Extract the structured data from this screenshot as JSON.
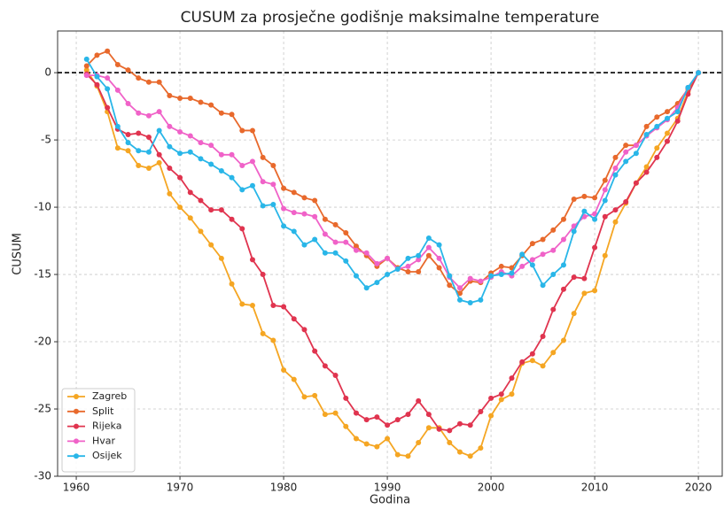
{
  "chart_data": {
    "type": "line",
    "title": "CUSUM za prosječne godišnje maksimalne temperature",
    "xlabel": "Godina",
    "ylabel": "CUSUM",
    "x": [
      1961,
      1962,
      1963,
      1964,
      1965,
      1966,
      1967,
      1968,
      1969,
      1970,
      1971,
      1972,
      1973,
      1974,
      1975,
      1976,
      1977,
      1978,
      1979,
      1980,
      1981,
      1982,
      1983,
      1984,
      1985,
      1986,
      1987,
      1988,
      1989,
      1990,
      1991,
      1992,
      1993,
      1994,
      1995,
      1996,
      1997,
      1998,
      1999,
      2000,
      2001,
      2002,
      2003,
      2004,
      2005,
      2006,
      2007,
      2008,
      2009,
      2010,
      2011,
      2012,
      2013,
      2014,
      2015,
      2016,
      2017,
      2018,
      2019,
      2020
    ],
    "series": [
      {
        "name": "Zagreb",
        "color": "#f5a623",
        "values": [
          0.2,
          -1.0,
          -2.9,
          -5.6,
          -5.8,
          -6.9,
          -7.1,
          -6.7,
          -9.0,
          -10.0,
          -10.8,
          -11.8,
          -12.8,
          -13.8,
          -15.7,
          -17.2,
          -17.3,
          -19.4,
          -19.9,
          -22.1,
          -22.8,
          -24.1,
          -24.0,
          -25.4,
          -25.3,
          -26.3,
          -27.2,
          -27.6,
          -27.8,
          -27.2,
          -28.4,
          -28.5,
          -27.5,
          -26.4,
          -26.4,
          -27.5,
          -28.2,
          -28.5,
          -27.9,
          -25.5,
          -24.3,
          -23.9,
          -21.6,
          -21.4,
          -21.8,
          -20.8,
          -19.9,
          -17.9,
          -16.4,
          -16.2,
          -13.6,
          -11.1,
          -9.7,
          -8.2,
          -7.0,
          -5.6,
          -4.5,
          -3.4,
          -1.4,
          0
        ]
      },
      {
        "name": "Split",
        "color": "#e8692c",
        "values": [
          0.5,
          1.3,
          1.6,
          0.6,
          0.2,
          -0.4,
          -0.7,
          -0.7,
          -1.7,
          -1.9,
          -1.9,
          -2.2,
          -2.4,
          -3.0,
          -3.1,
          -4.3,
          -4.3,
          -6.3,
          -6.9,
          -8.6,
          -8.9,
          -9.3,
          -9.5,
          -10.9,
          -11.3,
          -11.9,
          -12.9,
          -13.6,
          -14.4,
          -13.8,
          -14.5,
          -14.8,
          -14.8,
          -13.6,
          -14.5,
          -15.8,
          -16.4,
          -15.5,
          -15.6,
          -14.9,
          -14.4,
          -14.5,
          -13.6,
          -12.7,
          -12.4,
          -11.7,
          -10.9,
          -9.4,
          -9.2,
          -9.3,
          -8.0,
          -6.3,
          -5.4,
          -5.4,
          -4.0,
          -3.3,
          -2.9,
          -2.3,
          -1.2,
          0
        ]
      },
      {
        "name": "Rijeka",
        "color": "#e0344f",
        "values": [
          -0.1,
          -0.9,
          -2.6,
          -4.2,
          -4.6,
          -4.5,
          -4.8,
          -6.1,
          -7.1,
          -7.8,
          -8.9,
          -9.5,
          -10.2,
          -10.2,
          -10.9,
          -11.6,
          -13.9,
          -15.0,
          -17.3,
          -17.4,
          -18.3,
          -19.1,
          -20.7,
          -21.8,
          -22.5,
          -24.2,
          -25.3,
          -25.8,
          -25.6,
          -26.2,
          -25.8,
          -25.4,
          -24.4,
          -25.4,
          -26.5,
          -26.6,
          -26.1,
          -26.2,
          -25.2,
          -24.2,
          -23.9,
          -22.7,
          -21.5,
          -20.9,
          -19.6,
          -17.6,
          -16.1,
          -15.2,
          -15.3,
          -13.0,
          -10.7,
          -10.2,
          -9.6,
          -8.2,
          -7.4,
          -6.3,
          -5.1,
          -3.6,
          -1.6,
          0
        ]
      },
      {
        "name": "Hvar",
        "color": "#f062c8",
        "values": [
          -0.2,
          -0.2,
          -0.4,
          -1.3,
          -2.3,
          -3.0,
          -3.2,
          -2.9,
          -4.0,
          -4.4,
          -4.7,
          -5.2,
          -5.4,
          -6.1,
          -6.1,
          -6.9,
          -6.6,
          -8.1,
          -8.3,
          -10.1,
          -10.4,
          -10.5,
          -10.7,
          -12.0,
          -12.6,
          -12.6,
          -13.2,
          -13.4,
          -14.2,
          -13.8,
          -14.6,
          -14.4,
          -13.9,
          -13.0,
          -13.8,
          -15.2,
          -16.0,
          -15.3,
          -15.5,
          -15.2,
          -14.8,
          -15.1,
          -14.4,
          -13.9,
          -13.5,
          -13.2,
          -12.4,
          -11.4,
          -10.7,
          -10.5,
          -8.7,
          -7.1,
          -5.9,
          -5.4,
          -4.7,
          -4.1,
          -3.5,
          -2.6,
          -1.1,
          0
        ]
      },
      {
        "name": "Osijek",
        "color": "#29b6e8",
        "values": [
          1.0,
          -0.3,
          -1.2,
          -4.0,
          -5.2,
          -5.8,
          -5.9,
          -4.3,
          -5.5,
          -6.0,
          -5.9,
          -6.4,
          -6.8,
          -7.3,
          -7.8,
          -8.7,
          -8.4,
          -9.9,
          -9.8,
          -11.4,
          -11.8,
          -12.8,
          -12.4,
          -13.4,
          -13.4,
          -14.0,
          -15.1,
          -16.0,
          -15.6,
          -15.0,
          -14.6,
          -13.8,
          -13.6,
          -12.3,
          -12.8,
          -15.1,
          -16.9,
          -17.1,
          -16.9,
          -15.1,
          -15.0,
          -14.9,
          -13.5,
          -14.3,
          -15.8,
          -15.0,
          -14.3,
          -11.8,
          -10.3,
          -10.9,
          -9.5,
          -7.6,
          -6.6,
          -6.0,
          -4.6,
          -4.0,
          -3.4,
          -2.9,
          -1.1,
          0
        ]
      }
    ],
    "xlim": [
      1958.2,
      2022.3
    ],
    "ylim": [
      -30,
      3.1
    ],
    "xticks": [
      1960,
      1970,
      1980,
      1990,
      2000,
      2010,
      2020
    ],
    "yticks": [
      -30,
      -25,
      -20,
      -15,
      -10,
      -5,
      0
    ],
    "hline": 0,
    "grid": true,
    "legend": "lower left"
  }
}
